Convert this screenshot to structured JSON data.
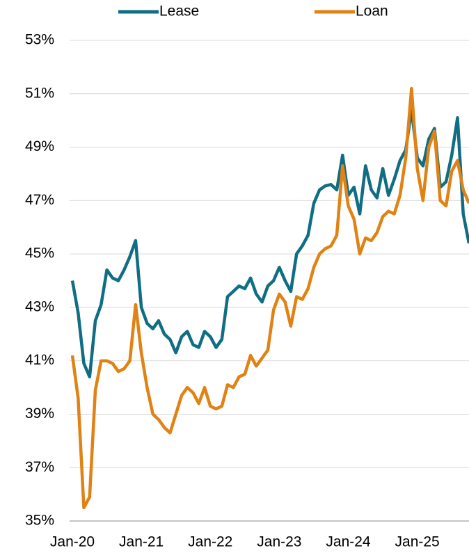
{
  "chart_data": {
    "type": "line",
    "categories": [
      "Jan-20",
      null,
      null,
      null,
      null,
      null,
      null,
      null,
      null,
      null,
      null,
      null,
      "Jan-21",
      null,
      null,
      null,
      null,
      null,
      null,
      null,
      null,
      null,
      null,
      null,
      "Jan-22",
      null,
      null,
      null,
      null,
      null,
      null,
      null,
      null,
      null,
      null,
      null,
      "Jan-23",
      null,
      null,
      null,
      null,
      null,
      null,
      null,
      null,
      null,
      null,
      null,
      "Jan-24",
      null,
      null,
      null,
      null,
      null,
      null,
      null,
      null,
      null,
      null,
      null,
      "Jan-25",
      null,
      null,
      null,
      null,
      null,
      null,
      null,
      null,
      null
    ],
    "series": [
      {
        "name": "Lease",
        "color": "#0f6e84",
        "values": [
          44.0,
          42.8,
          40.9,
          40.4,
          42.5,
          43.1,
          44.4,
          44.1,
          44.0,
          44.4,
          44.9,
          45.5,
          43.0,
          42.4,
          42.2,
          42.5,
          42.0,
          41.8,
          41.3,
          41.9,
          42.1,
          41.6,
          41.5,
          42.1,
          41.9,
          41.5,
          41.8,
          43.4,
          43.6,
          43.8,
          43.7,
          44.1,
          43.5,
          43.2,
          43.8,
          44.0,
          44.5,
          44.0,
          43.6,
          45.0,
          45.3,
          45.7,
          46.9,
          47.4,
          47.55,
          47.6,
          47.4,
          48.7,
          47.2,
          47.5,
          46.5,
          48.3,
          47.4,
          47.1,
          48.2,
          47.2,
          47.8,
          48.5,
          48.9,
          50.4,
          48.6,
          48.3,
          49.3,
          49.7,
          47.5,
          47.7,
          48.7,
          50.1,
          46.5,
          45.4
        ]
      },
      {
        "name": "Loan",
        "color": "#e08214",
        "values": [
          41.2,
          39.6,
          35.5,
          35.9,
          39.9,
          41.0,
          41.0,
          40.9,
          40.6,
          40.7,
          41.0,
          43.1,
          41.3,
          40.0,
          39.0,
          38.8,
          38.5,
          38.3,
          39.0,
          39.7,
          40.0,
          39.8,
          39.4,
          40.0,
          39.3,
          39.2,
          39.3,
          40.1,
          40.0,
          40.4,
          40.5,
          41.2,
          40.8,
          41.1,
          41.4,
          42.9,
          43.5,
          43.2,
          42.3,
          43.4,
          43.3,
          43.7,
          44.5,
          45.0,
          45.2,
          45.3,
          45.7,
          48.3,
          46.8,
          46.3,
          45.0,
          45.6,
          45.5,
          45.8,
          46.4,
          46.6,
          46.5,
          47.2,
          48.6,
          51.2,
          48.2,
          47.0,
          49.0,
          49.6,
          47.0,
          46.8,
          48.1,
          48.5,
          47.4,
          46.9
        ]
      }
    ],
    "ylim": [
      35,
      53
    ],
    "yticks": [
      {
        "value": 35,
        "label": "35%"
      },
      {
        "value": 37,
        "label": "37%"
      },
      {
        "value": 39,
        "label": "39%"
      },
      {
        "value": 41,
        "label": "41%"
      },
      {
        "value": 43,
        "label": "43%"
      },
      {
        "value": 45,
        "label": "45%"
      },
      {
        "value": 47,
        "label": "47%"
      },
      {
        "value": 49,
        "label": "49%"
      },
      {
        "value": 51,
        "label": "51%"
      },
      {
        "value": 53,
        "label": "53%"
      }
    ],
    "grid": true,
    "legend": "top"
  }
}
